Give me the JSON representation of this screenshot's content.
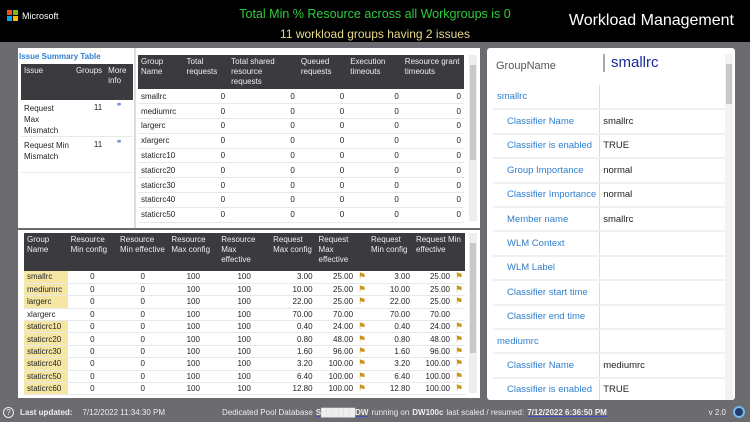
{
  "header": {
    "logo": "Microsoft",
    "title_line1": "Total Min % Resource across all Workgroups is 0",
    "title_line2": "11 workload groups having 2 issues",
    "app_title": "Workload Management"
  },
  "issues": {
    "title": "Issue Summary Table",
    "columns": [
      "Issue",
      "Groups",
      "More info"
    ],
    "rows": [
      {
        "issue": "Request Max Mismatch",
        "groups": "11"
      },
      {
        "issue": "Request Min Mismatch",
        "groups": "11"
      }
    ]
  },
  "requests": {
    "columns": [
      "Group Name",
      "Total requests",
      "Total shared resource requests",
      "Queued requests",
      "Execution timeouts",
      "Resource grant timeouts"
    ],
    "rows": [
      [
        "smallrc",
        "0",
        "0",
        "0",
        "0",
        "0"
      ],
      [
        "mediumrc",
        "0",
        "0",
        "0",
        "0",
        "0"
      ],
      [
        "largerc",
        "0",
        "0",
        "0",
        "0",
        "0"
      ],
      [
        "xlargerc",
        "0",
        "0",
        "0",
        "0",
        "0"
      ],
      [
        "staticrc10",
        "0",
        "0",
        "0",
        "0",
        "0"
      ],
      [
        "staticrc20",
        "0",
        "0",
        "0",
        "0",
        "0"
      ],
      [
        "staticrc30",
        "0",
        "0",
        "0",
        "0",
        "0"
      ],
      [
        "staticrc40",
        "0",
        "0",
        "0",
        "0",
        "0"
      ],
      [
        "staticrc50",
        "0",
        "0",
        "0",
        "0",
        "0"
      ]
    ]
  },
  "config": {
    "columns": [
      "Group Name",
      "Resource Min config",
      "Resource Min effective",
      "Resource Max config",
      "Resource Max effective",
      "Request Max config",
      "Request Max effective",
      "Request Min config",
      "Request Min effective"
    ],
    "rows": [
      {
        "c": [
          "smallrc",
          "0",
          "0",
          "100",
          "100",
          "3.00",
          "25.00",
          "3.00",
          "25.00"
        ],
        "flag": true
      },
      {
        "c": [
          "mediumrc",
          "0",
          "0",
          "100",
          "100",
          "10.00",
          "25.00",
          "10.00",
          "25.00"
        ],
        "flag": true
      },
      {
        "c": [
          "largerc",
          "0",
          "0",
          "100",
          "100",
          "22.00",
          "25.00",
          "22.00",
          "25.00"
        ],
        "flag": true
      },
      {
        "c": [
          "xlargerc",
          "0",
          "0",
          "100",
          "100",
          "70.00",
          "70.00",
          "70.00",
          "70.00"
        ],
        "flag": false
      },
      {
        "c": [
          "staticrc10",
          "0",
          "0",
          "100",
          "100",
          "0.40",
          "24.00",
          "0.40",
          "24.00"
        ],
        "flag": true
      },
      {
        "c": [
          "staticrc20",
          "0",
          "0",
          "100",
          "100",
          "0.80",
          "48.00",
          "0.80",
          "48.00"
        ],
        "flag": true
      },
      {
        "c": [
          "staticrc30",
          "0",
          "0",
          "100",
          "100",
          "1.60",
          "96.00",
          "1.60",
          "96.00"
        ],
        "flag": true
      },
      {
        "c": [
          "staticrc40",
          "0",
          "0",
          "100",
          "100",
          "3.20",
          "100.00",
          "3.20",
          "100.00"
        ],
        "flag": true
      },
      {
        "c": [
          "staticrc50",
          "0",
          "0",
          "100",
          "100",
          "6.40",
          "100.00",
          "6.40",
          "100.00"
        ],
        "flag": true
      },
      {
        "c": [
          "staticrc60",
          "0",
          "0",
          "100",
          "100",
          "12.80",
          "100.00",
          "12.80",
          "100.00"
        ],
        "flag": true
      }
    ]
  },
  "details": {
    "label": "GroupName",
    "value": "smallrc",
    "rows": [
      {
        "section": "smallrc"
      },
      {
        "k": "Classifier Name",
        "v": "smallrc"
      },
      {
        "k": "Classifier is enabled",
        "v": "TRUE"
      },
      {
        "k": "Group Importance",
        "v": "normal"
      },
      {
        "k": "Classifier Importance",
        "v": "normal"
      },
      {
        "k": "Member name",
        "v": "smallrc"
      },
      {
        "k": "WLM Context",
        "v": ""
      },
      {
        "k": "WLM Label",
        "v": ""
      },
      {
        "k": "Classifier start time",
        "v": ""
      },
      {
        "k": "Classifier end time",
        "v": ""
      },
      {
        "section": "mediumrc"
      },
      {
        "k": "Classifier Name",
        "v": "mediumrc"
      },
      {
        "k": "Classifier is enabled",
        "v": "TRUE"
      }
    ]
  },
  "footer": {
    "last_updated_label": "Last updated:",
    "last_updated": "7/12/2022 11:34:30 PM",
    "pool_prefix": "Dedicated Pool Database",
    "db_name": "S██████DW",
    "running_on": "running on",
    "dwu": "DW100c",
    "scaled_label": "last scaled / resumed:",
    "scaled": "7/12/2022 6:36:50 PM",
    "version": "v 2.0"
  },
  "colors": {
    "highlight": "#f5e6a3",
    "header_bg": "#3a3a3f",
    "link": "#2f7fd0",
    "flag": "#c8951a"
  }
}
